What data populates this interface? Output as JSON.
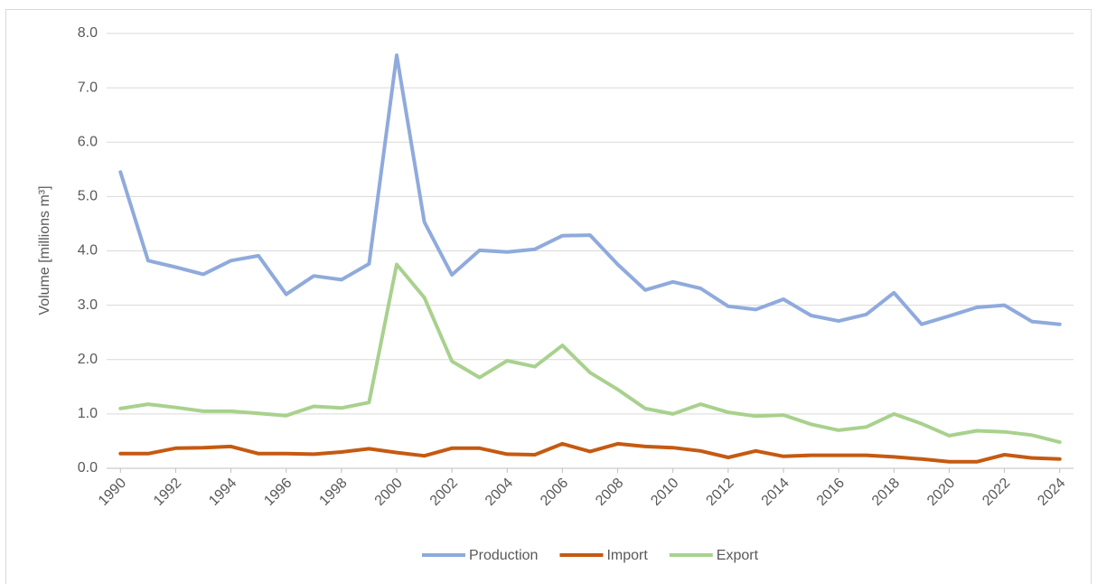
{
  "chart_data": {
    "type": "line",
    "y_label": "Volume [millions m³]",
    "x": [
      1990,
      1991,
      1992,
      1993,
      1994,
      1995,
      1996,
      1997,
      1998,
      1999,
      2000,
      2001,
      2002,
      2003,
      2004,
      2005,
      2006,
      2007,
      2008,
      2009,
      2010,
      2011,
      2012,
      2013,
      2014,
      2015,
      2016,
      2017,
      2018,
      2019,
      2020,
      2021,
      2022,
      2023,
      2024
    ],
    "xlim": [
      1989.5,
      2024.5
    ],
    "xticks": [
      1990,
      1992,
      1994,
      1996,
      1998,
      2000,
      2002,
      2004,
      2006,
      2008,
      2010,
      2012,
      2014,
      2016,
      2018,
      2020,
      2022,
      2024
    ],
    "ylim": [
      0,
      8
    ],
    "yticks": [
      {
        "value": 0,
        "label": "0.0"
      },
      {
        "value": 1,
        "label": "1.0"
      },
      {
        "value": 2,
        "label": "2.0"
      },
      {
        "value": 3,
        "label": "3.0"
      },
      {
        "value": 4,
        "label": "4.0"
      },
      {
        "value": 5,
        "label": "5.0"
      },
      {
        "value": 6,
        "label": "6.0"
      },
      {
        "value": 7,
        "label": "7.0"
      },
      {
        "value": 8,
        "label": "8.0"
      }
    ],
    "grid": true,
    "legend": "bottom",
    "series": [
      {
        "name": "Production",
        "color": "#8faadc",
        "values": [
          5.45,
          3.82,
          3.7,
          3.57,
          3.82,
          3.91,
          3.2,
          3.54,
          3.47,
          3.76,
          7.6,
          4.53,
          3.56,
          4.01,
          3.98,
          4.03,
          4.28,
          4.29,
          3.75,
          3.28,
          3.43,
          3.31,
          2.98,
          2.92,
          3.11,
          2.81,
          2.71,
          2.83,
          3.23,
          2.65,
          2.8,
          2.96,
          3.0,
          2.7,
          2.65
        ]
      },
      {
        "name": "Import",
        "color": "#c55a11",
        "values": [
          0.27,
          0.27,
          0.37,
          0.38,
          0.4,
          0.27,
          0.27,
          0.26,
          0.3,
          0.36,
          0.29,
          0.23,
          0.37,
          0.37,
          0.26,
          0.25,
          0.45,
          0.31,
          0.45,
          0.4,
          0.38,
          0.32,
          0.2,
          0.32,
          0.22,
          0.24,
          0.24,
          0.24,
          0.21,
          0.17,
          0.12,
          0.12,
          0.25,
          0.19,
          0.17
        ]
      },
      {
        "name": "Export",
        "color": "#a9d18e",
        "values": [
          1.1,
          1.18,
          1.12,
          1.05,
          1.05,
          1.01,
          0.97,
          1.14,
          1.11,
          1.21,
          3.75,
          3.14,
          1.97,
          1.67,
          1.98,
          1.87,
          2.26,
          1.76,
          1.45,
          1.1,
          1.0,
          1.18,
          1.03,
          0.96,
          0.98,
          0.81,
          0.7,
          0.76,
          1.0,
          0.82,
          0.6,
          0.69,
          0.67,
          0.61,
          0.48
        ]
      }
    ]
  }
}
